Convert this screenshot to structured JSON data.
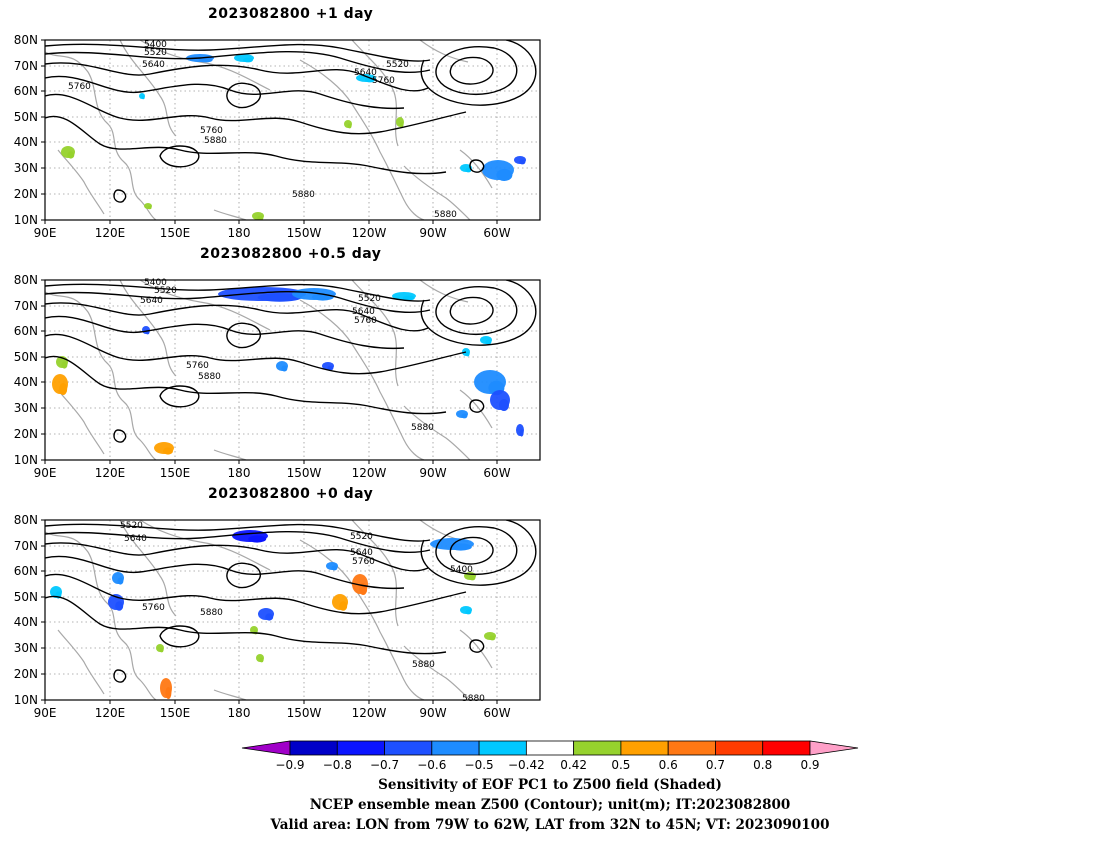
{
  "panels": [
    {
      "title": "2023082800  +1 day",
      "y_ticks": [
        "80N",
        "70N",
        "60N",
        "50N",
        "40N",
        "30N",
        "20N",
        "10N"
      ],
      "x_ticks": [
        "90E",
        "120E",
        "150E",
        "180",
        "150W",
        "120W",
        "90W",
        "60W"
      ],
      "contour_labels": [
        "5400",
        "5520",
        "5640",
        "5760",
        "5640",
        "5760",
        "5520",
        "5760",
        "5880",
        "5880",
        "5880"
      ]
    },
    {
      "title": "2023082800  +0.5 day",
      "y_ticks": [
        "80N",
        "70N",
        "60N",
        "50N",
        "40N",
        "30N",
        "20N",
        "10N"
      ],
      "x_ticks": [
        "90E",
        "120E",
        "150E",
        "180",
        "150W",
        "120W",
        "90W",
        "60W"
      ],
      "contour_labels": [
        "5400",
        "5520",
        "5640",
        "5520",
        "5640",
        "5760",
        "5760",
        "5880",
        "5880"
      ]
    },
    {
      "title": "2023082800  +0 day",
      "y_ticks": [
        "80N",
        "70N",
        "60N",
        "50N",
        "40N",
        "30N",
        "20N",
        "10N"
      ],
      "x_ticks": [
        "90E",
        "120E",
        "150E",
        "180",
        "150W",
        "120W",
        "90W",
        "60W"
      ],
      "contour_labels": [
        "5520",
        "5640",
        "5520",
        "5640",
        "5760",
        "5400",
        "5760",
        "5880",
        "5880",
        "5880"
      ]
    }
  ],
  "colorbar": {
    "ticks": [
      "−0.9",
      "−0.8",
      "−0.7",
      "−0.6",
      "−0.5",
      "−0.42",
      "0.42",
      "0.5",
      "0.6",
      "0.7",
      "0.8",
      "0.9"
    ],
    "colors": [
      "#a000c8",
      "#0000c8",
      "#0a14ff",
      "#1e50ff",
      "#1e8cff",
      "#00c8ff",
      "#ffffff",
      "#96d22d",
      "#ffa000",
      "#ff7814",
      "#ff3c00",
      "#ff0000",
      "#ffa0c8"
    ]
  },
  "caption": {
    "line1": "Sensitivity of EOF PC1 to Z500 field (Shaded)",
    "line2": "NCEP ensemble mean Z500 (Contour); unit(m); IT:2023082800",
    "line3": "Valid area: LON from 79W to 62W, LAT from 32N to 45N; VT: 2023090100"
  }
}
